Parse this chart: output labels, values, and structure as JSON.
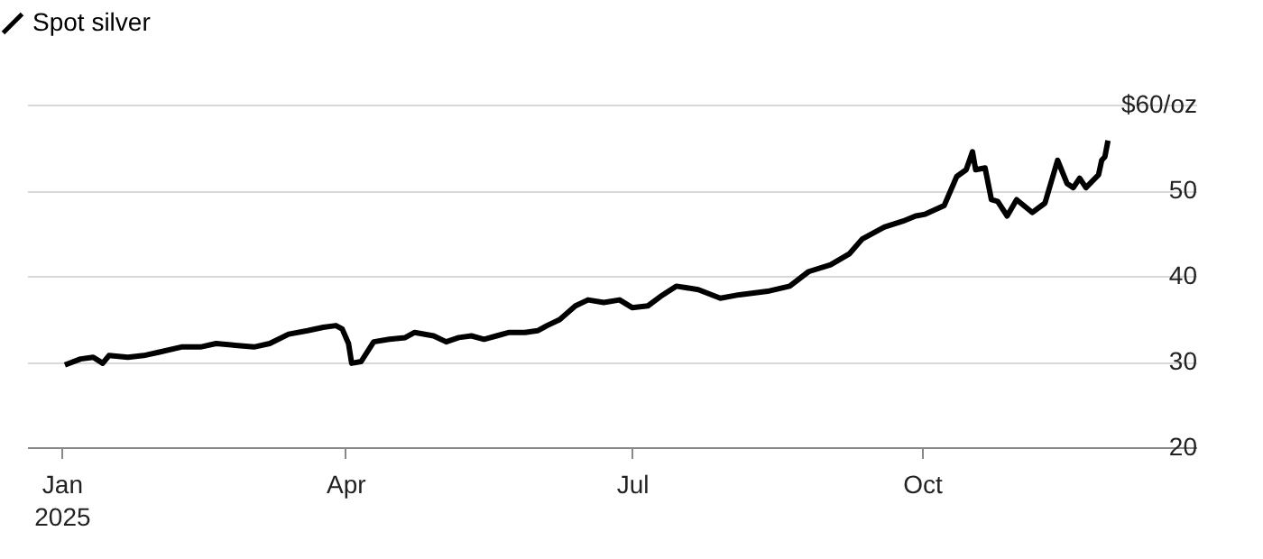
{
  "chart_data": {
    "type": "line",
    "x": [
      "2025-01-02",
      "2025-01-07",
      "2025-01-11",
      "2025-01-14",
      "2025-01-16",
      "2025-01-22",
      "2025-01-27",
      "2025-02-01",
      "2025-02-08",
      "2025-02-14",
      "2025-02-19",
      "2025-02-25",
      "2025-03-03",
      "2025-03-08",
      "2025-03-14",
      "2025-03-20",
      "2025-03-25",
      "2025-03-29",
      "2025-03-31",
      "2025-04-02",
      "2025-04-03",
      "2025-04-06",
      "2025-04-10",
      "2025-04-15",
      "2025-04-20",
      "2025-04-23",
      "2025-04-29",
      "2025-05-03",
      "2025-05-07",
      "2025-05-11",
      "2025-05-15",
      "2025-05-19",
      "2025-05-23",
      "2025-05-28",
      "2025-06-01",
      "2025-06-04",
      "2025-06-08",
      "2025-06-13",
      "2025-06-17",
      "2025-06-22",
      "2025-06-27",
      "2025-07-01",
      "2025-07-06",
      "2025-07-10",
      "2025-07-15",
      "2025-07-22",
      "2025-07-29",
      "2025-08-04",
      "2025-08-13",
      "2025-08-20",
      "2025-08-26",
      "2025-09-02",
      "2025-09-08",
      "2025-09-12",
      "2025-09-19",
      "2025-09-25",
      "2025-09-29",
      "2025-10-02",
      "2025-10-08",
      "2025-10-12",
      "2025-10-15",
      "2025-10-17",
      "2025-10-18",
      "2025-10-21",
      "2025-10-23",
      "2025-10-25",
      "2025-10-28",
      "2025-10-31",
      "2025-11-05",
      "2025-11-09",
      "2025-11-13",
      "2025-11-16",
      "2025-11-18",
      "2025-11-20",
      "2025-11-22",
      "2025-11-26",
      "2025-11-27",
      "2025-11-28",
      "2025-11-29"
    ],
    "series": [
      {
        "name": "Spot silver",
        "color": "#000000",
        "values": [
          29.6,
          30.3,
          30.5,
          29.8,
          30.7,
          30.5,
          30.7,
          31.1,
          31.7,
          31.7,
          32.1,
          31.9,
          31.7,
          32.1,
          33.2,
          33.6,
          34.0,
          34.2,
          33.8,
          32.1,
          29.8,
          30.0,
          32.3,
          32.6,
          32.8,
          33.4,
          33.0,
          32.3,
          32.8,
          33.0,
          32.6,
          33.0,
          33.4,
          33.4,
          33.6,
          34.2,
          34.9,
          36.5,
          37.2,
          36.9,
          37.2,
          36.3,
          36.5,
          37.6,
          38.8,
          38.4,
          37.4,
          37.8,
          38.2,
          38.8,
          40.5,
          41.3,
          42.6,
          44.3,
          45.7,
          46.4,
          47.0,
          47.2,
          48.2,
          51.6,
          52.4,
          54.5,
          52.4,
          52.6,
          48.9,
          48.7,
          47.0,
          48.9,
          47.4,
          48.5,
          53.5,
          50.8,
          50.3,
          51.4,
          50.3,
          51.8,
          53.5,
          53.9,
          55.8
        ]
      }
    ],
    "xlim": [
      "2024-12-21",
      "2025-12-27"
    ],
    "xticks": [
      {
        "value": "2025-01-01",
        "label": "Jan\n2025"
      },
      {
        "value": "2025-04-01",
        "label": "Apr"
      },
      {
        "value": "2025-07-01",
        "label": "Jul"
      },
      {
        "value": "2025-10-01",
        "label": "Oct"
      }
    ],
    "ylim": [
      20,
      60
    ],
    "yticks": [
      20,
      30,
      40,
      50,
      {
        "value": 60,
        "label": "$60/oz"
      }
    ],
    "grid": "y",
    "legend": "top left",
    "line_style": "solid"
  }
}
